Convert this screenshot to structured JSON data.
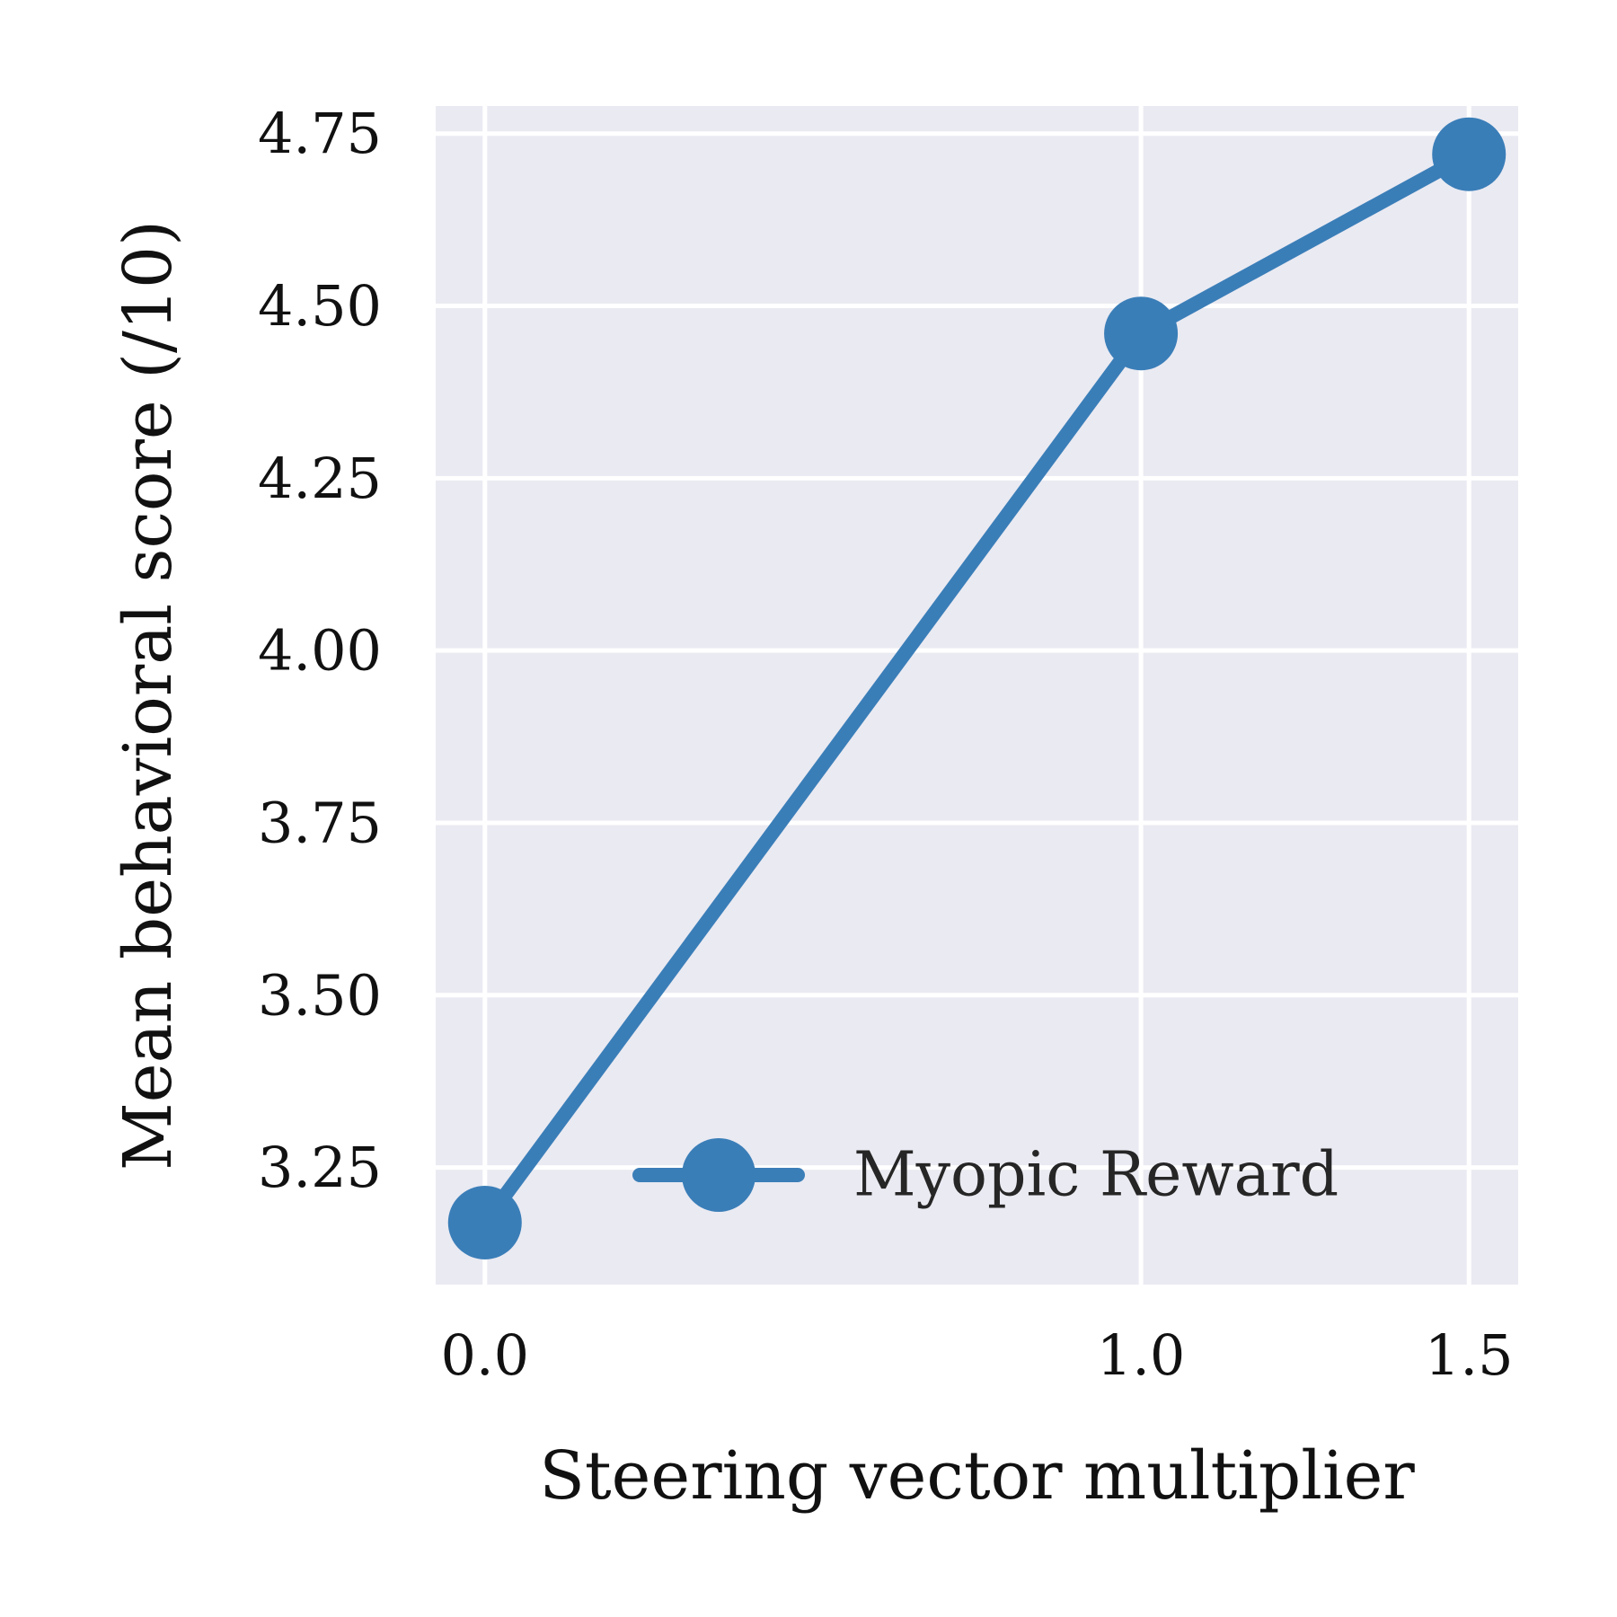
{
  "chart_data": {
    "type": "line",
    "x": [
      0.0,
      1.0,
      1.5
    ],
    "series": [
      {
        "name": "Myopic Reward",
        "values": [
          3.17,
          4.46,
          4.72
        ]
      }
    ],
    "xlabel": "Steering vector multiplier",
    "ylabel": "Mean behavioral score (/10)",
    "xlim": [
      -0.075,
      1.575
    ],
    "ylim": [
      3.08,
      4.79
    ],
    "xticks": [
      0.0,
      1.0,
      1.5
    ],
    "xtick_labels": [
      "0.0",
      "1.0",
      "1.5"
    ],
    "yticks": [
      3.25,
      3.5,
      3.75,
      4.0,
      4.25,
      4.5,
      4.75
    ],
    "ytick_labels": [
      "3.25",
      "3.50",
      "3.75",
      "4.00",
      "4.25",
      "4.50",
      "4.75"
    ],
    "grid": true,
    "legend_position": "lower-right",
    "colors": {
      "series": "#3a7eb8",
      "background": "#eaeaf2",
      "grid": "#ffffff"
    }
  }
}
